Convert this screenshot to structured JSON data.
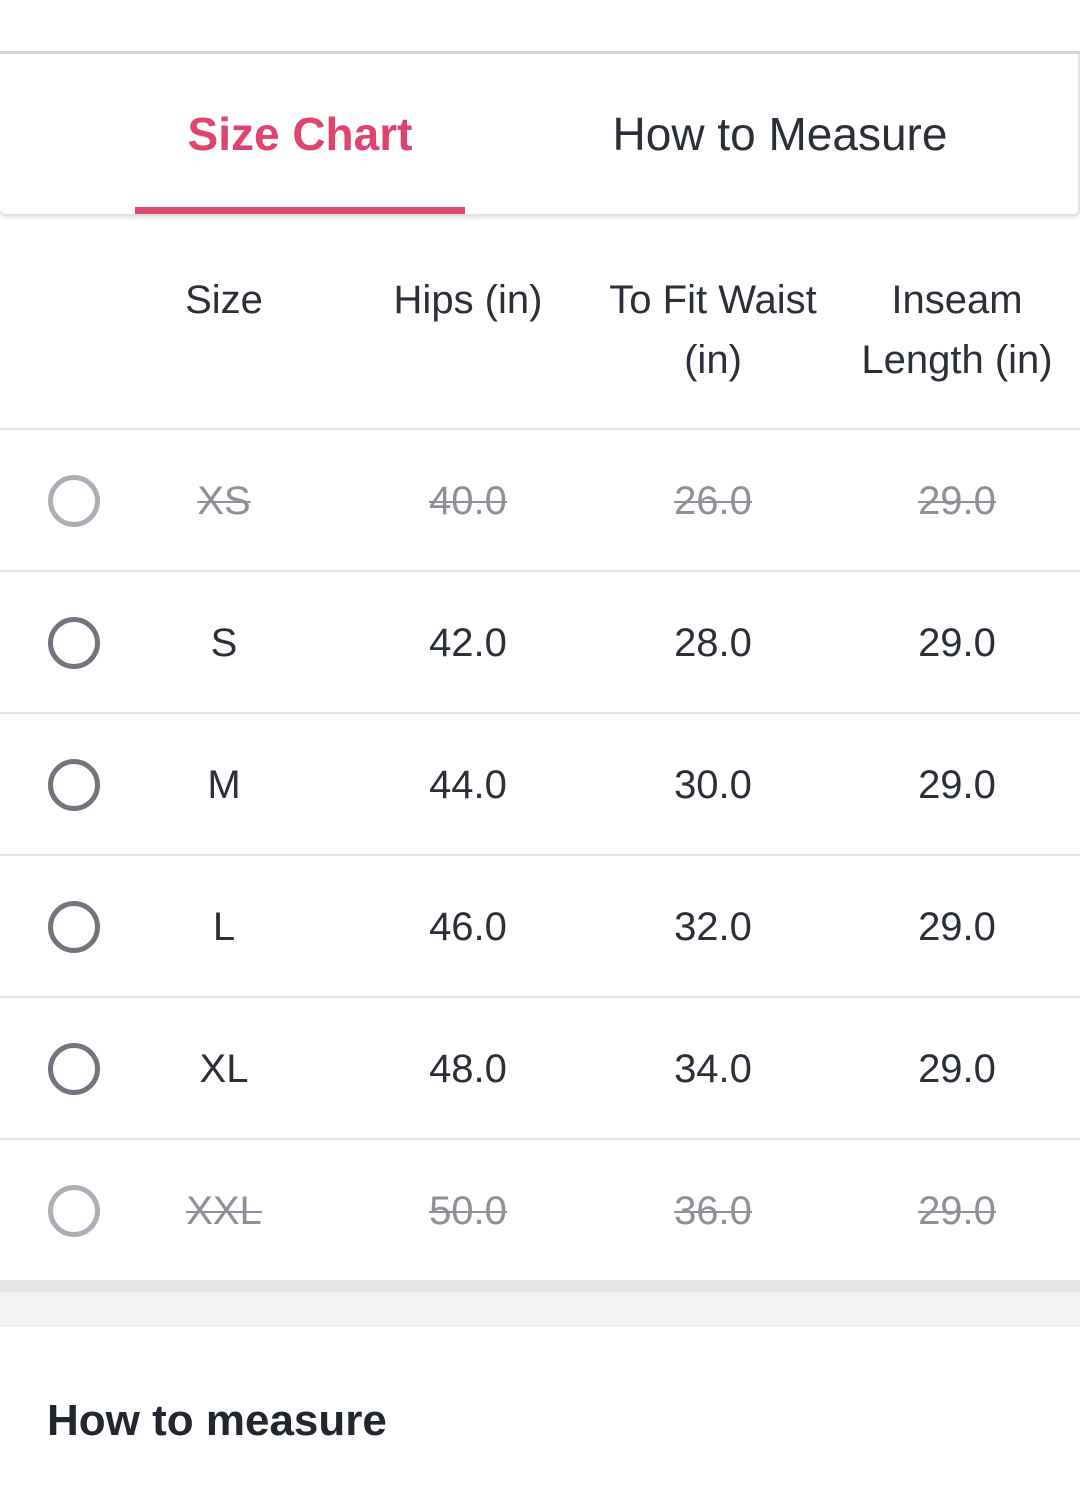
{
  "tabs": {
    "size_chart": "Size Chart",
    "how_to_measure": "How to Measure",
    "active": "size_chart"
  },
  "colors": {
    "accent": "#e0436e",
    "text": "#2a2f38",
    "unavailable": "#8d9097"
  },
  "table": {
    "headers": {
      "size": "Size",
      "hips": "Hips (in)",
      "waist_1": "To Fit Waist",
      "waist_2": "(in)",
      "inseam_1": "Inseam",
      "inseam_2": "Length (in)"
    },
    "rows": [
      {
        "size": "XS",
        "hips": "40.0",
        "waist": "26.0",
        "inseam": "29.0",
        "available": false,
        "selected": false
      },
      {
        "size": "S",
        "hips": "42.0",
        "waist": "28.0",
        "inseam": "29.0",
        "available": true,
        "selected": false
      },
      {
        "size": "M",
        "hips": "44.0",
        "waist": "30.0",
        "inseam": "29.0",
        "available": true,
        "selected": false
      },
      {
        "size": "L",
        "hips": "46.0",
        "waist": "32.0",
        "inseam": "29.0",
        "available": true,
        "selected": false
      },
      {
        "size": "XL",
        "hips": "48.0",
        "waist": "34.0",
        "inseam": "29.0",
        "available": true,
        "selected": false
      },
      {
        "size": "XXL",
        "hips": "50.0",
        "waist": "36.0",
        "inseam": "29.0",
        "available": false,
        "selected": false
      }
    ]
  },
  "section": {
    "how_to_measure_title": "How to measure"
  }
}
